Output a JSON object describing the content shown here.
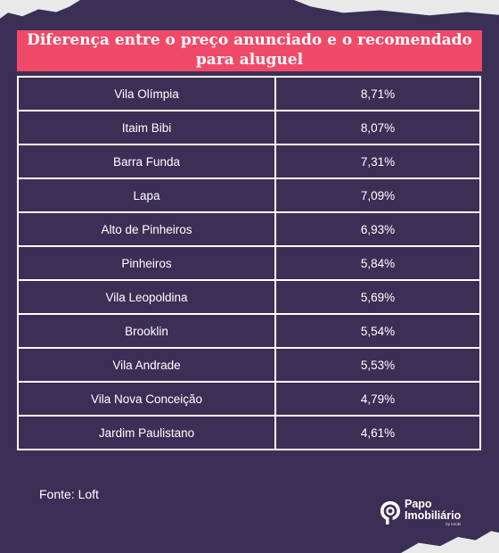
{
  "table": {
    "title": "Diferença entre o preço anunciado e o recomendado para aluguel",
    "rows": [
      {
        "bairro": "Vila Olímpia",
        "valor": "8,71%"
      },
      {
        "bairro": "Itaim Bibi",
        "valor": "8,07%"
      },
      {
        "bairro": "Barra Funda",
        "valor": "7,31%"
      },
      {
        "bairro": "Lapa",
        "valor": "7,09%"
      },
      {
        "bairro": "Alto de Pinheiros",
        "valor": "6,93%"
      },
      {
        "bairro": "Pinheiros",
        "valor": "5,84%"
      },
      {
        "bairro": "Vila Leopoldina",
        "valor": "5,69%"
      },
      {
        "bairro": "Brooklin",
        "valor": "5,54%"
      },
      {
        "bairro": "Vila Andrade",
        "valor": "5,53%"
      },
      {
        "bairro": "Vila Nova Conceição",
        "valor": "4,79%"
      },
      {
        "bairro": "Jardim Paulistano",
        "valor": "4,61%"
      }
    ]
  },
  "source": "Fonte: Loft",
  "logo": {
    "line1": "Papo",
    "line2": "Imobiliário",
    "sub": "by Imobi"
  },
  "colors": {
    "background": "#3b2f55",
    "title_bar": "#f04a68",
    "text": "#ffffff",
    "paper": "#e9e9ea"
  }
}
